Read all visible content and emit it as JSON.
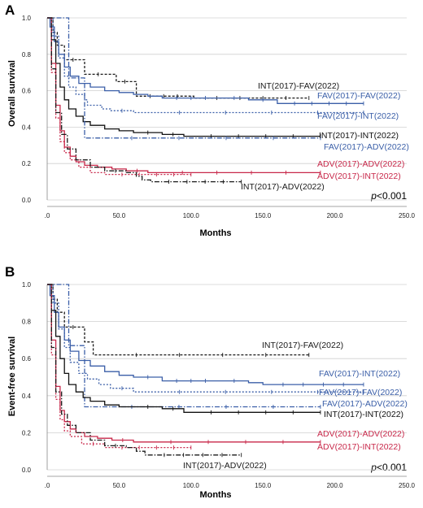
{
  "chart_data": [
    {
      "panel": "A",
      "type": "line",
      "ylabel": "Overall survival",
      "xlabel": "Months",
      "xlim": [
        0,
        250
      ],
      "ylim": [
        0,
        1
      ],
      "xticks": [
        ".0",
        "50.0",
        "100.0",
        "150.0",
        "200.0",
        "250.0"
      ],
      "yticks": [
        "0.0",
        "0.2",
        "0.4",
        "0.6",
        "0.8",
        "1.0"
      ],
      "pvalue": {
        "p": "p",
        "rest": "<0.001"
      },
      "series": [
        {
          "name": "INT(2017)-FAV(2022)",
          "color": "#1a1a1a",
          "dash": "3,2",
          "points": [
            [
              0,
              1.0
            ],
            [
              4,
              0.92
            ],
            [
              7,
              0.85
            ],
            [
              12,
              0.77
            ],
            [
              24,
              0.77
            ],
            [
              26,
              0.69
            ],
            [
              45,
              0.69
            ],
            [
              48,
              0.65
            ],
            [
              60,
              0.65
            ],
            [
              62,
              0.57
            ],
            [
              100,
              0.57
            ],
            [
              102,
              0.56
            ],
            [
              182,
              0.56
            ]
          ]
        },
        {
          "name": "FAV(2017)-FAV(2022)",
          "color": "#3b5fa8",
          "dash": "",
          "points": [
            [
              0,
              1.0
            ],
            [
              2,
              0.95
            ],
            [
              5,
              0.87
            ],
            [
              8,
              0.8
            ],
            [
              12,
              0.73
            ],
            [
              16,
              0.68
            ],
            [
              22,
              0.64
            ],
            [
              30,
              0.62
            ],
            [
              40,
              0.6
            ],
            [
              50,
              0.59
            ],
            [
              60,
              0.58
            ],
            [
              70,
              0.57
            ],
            [
              80,
              0.56
            ],
            [
              120,
              0.56
            ],
            [
              140,
              0.55
            ],
            [
              160,
              0.53
            ],
            [
              220,
              0.53
            ]
          ]
        },
        {
          "name": "FAV(2017)-INT(2022)",
          "color": "#3b5fa8",
          "dash": "2,2",
          "points": [
            [
              0,
              1.0
            ],
            [
              4,
              0.9
            ],
            [
              8,
              0.78
            ],
            [
              12,
              0.68
            ],
            [
              15,
              0.62
            ],
            [
              20,
              0.58
            ],
            [
              26,
              0.55
            ],
            [
              28,
              0.52
            ],
            [
              38,
              0.5
            ],
            [
              44,
              0.49
            ],
            [
              60,
              0.48
            ],
            [
              220,
              0.48
            ]
          ]
        },
        {
          "name": "INT(2017)-INT(2022)",
          "color": "#111111",
          "dash": "",
          "points": [
            [
              0,
              1.0
            ],
            [
              3,
              0.88
            ],
            [
              6,
              0.75
            ],
            [
              9,
              0.62
            ],
            [
              12,
              0.55
            ],
            [
              15,
              0.5
            ],
            [
              20,
              0.46
            ],
            [
              25,
              0.43
            ],
            [
              30,
              0.41
            ],
            [
              40,
              0.39
            ],
            [
              50,
              0.38
            ],
            [
              60,
              0.37
            ],
            [
              80,
              0.36
            ],
            [
              95,
              0.35
            ],
            [
              190,
              0.35
            ]
          ]
        },
        {
          "name": "FAV(2017)-ADV(2022)",
          "color": "#3b5fa8",
          "dash": "6,2,1.5,2",
          "points": [
            [
              0,
              1.0
            ],
            [
              15,
              1.0
            ],
            [
              15,
              0.67
            ],
            [
              26,
              0.67
            ],
            [
              26,
              0.34
            ],
            [
              190,
              0.34
            ]
          ]
        },
        {
          "name": "ADV(2017)-ADV(2022)",
          "color": "#c8284a",
          "dash": "",
          "points": [
            [
              0,
              1.0
            ],
            [
              3,
              0.75
            ],
            [
              6,
              0.52
            ],
            [
              9,
              0.38
            ],
            [
              12,
              0.29
            ],
            [
              16,
              0.24
            ],
            [
              20,
              0.21
            ],
            [
              26,
              0.19
            ],
            [
              35,
              0.18
            ],
            [
              45,
              0.17
            ],
            [
              55,
              0.16
            ],
            [
              70,
              0.15
            ],
            [
              190,
              0.15
            ]
          ]
        },
        {
          "name": "ADV(2017)-INT(2022)",
          "color": "#c8284a",
          "dash": "2,2",
          "points": [
            [
              0,
              1.0
            ],
            [
              3,
              0.7
            ],
            [
              6,
              0.45
            ],
            [
              9,
              0.32
            ],
            [
              12,
              0.26
            ],
            [
              16,
              0.22
            ],
            [
              22,
              0.18
            ],
            [
              30,
              0.15
            ],
            [
              40,
              0.14
            ],
            [
              100,
              0.14
            ]
          ]
        },
        {
          "name": "INT(2017)-ADV(2022)",
          "color": "#1a1a1a",
          "dash": "6,2,1.5,2",
          "points": [
            [
              0,
              1.0
            ],
            [
              3,
              0.72
            ],
            [
              6,
              0.48
            ],
            [
              10,
              0.36
            ],
            [
              14,
              0.28
            ],
            [
              20,
              0.22
            ],
            [
              30,
              0.18
            ],
            [
              40,
              0.16
            ],
            [
              55,
              0.15
            ],
            [
              62,
              0.13
            ],
            [
              66,
              0.11
            ],
            [
              72,
              0.1
            ],
            [
              135,
              0.1
            ]
          ]
        }
      ],
      "labels": [
        {
          "series": 0,
          "text": "INT(2017)-FAV(2022)"
        },
        {
          "series": 1,
          "text": "FAV(2017)-FAV(2022)"
        },
        {
          "series": 2,
          "text": "FAV(2017)-INT(2022)"
        },
        {
          "series": 3,
          "text": "INT(2017)-INT(2022)"
        },
        {
          "series": 4,
          "text": "FAV(2017)-ADV(2022)"
        },
        {
          "series": 5,
          "text": "ADV(2017)-ADV(2022)"
        },
        {
          "series": 6,
          "text": "ADV(2017)-INT(2022)"
        },
        {
          "series": 7,
          "text": "INT(2017)-ADV(2022)"
        }
      ]
    },
    {
      "panel": "B",
      "type": "line",
      "ylabel": "Event-free survival",
      "xlabel": "Months",
      "xlim": [
        0,
        250
      ],
      "ylim": [
        0,
        1
      ],
      "xticks": [
        ".0",
        "50.0",
        "100.0",
        "150.0",
        "200.0",
        "250.0"
      ],
      "yticks": [
        "0.0",
        "0.2",
        "0.4",
        "0.6",
        "0.8",
        "1.0"
      ],
      "pvalue": {
        "p": "p",
        "rest": "<0.001"
      },
      "series": [
        {
          "name": "INT(2017)-FAV(2022)",
          "color": "#1a1a1a",
          "dash": "3,2",
          "points": [
            [
              0,
              1.0
            ],
            [
              4,
              0.92
            ],
            [
              7,
              0.85
            ],
            [
              12,
              0.77
            ],
            [
              24,
              0.77
            ],
            [
              26,
              0.69
            ],
            [
              30,
              0.69
            ],
            [
              32,
              0.62
            ],
            [
              182,
              0.62
            ]
          ]
        },
        {
          "name": "FAV(2017)-INT(2022)",
          "color": "#3b5fa8",
          "dash": "",
          "points": [
            [
              0,
              1.0
            ],
            [
              2,
              0.94
            ],
            [
              5,
              0.85
            ],
            [
              8,
              0.77
            ],
            [
              12,
              0.7
            ],
            [
              16,
              0.64
            ],
            [
              22,
              0.59
            ],
            [
              30,
              0.56
            ],
            [
              40,
              0.53
            ],
            [
              50,
              0.51
            ],
            [
              60,
              0.5
            ],
            [
              80,
              0.48
            ],
            [
              120,
              0.48
            ],
            [
              140,
              0.47
            ],
            [
              150,
              0.46
            ],
            [
              220,
              0.46
            ]
          ]
        },
        {
          "name": "FAV(2017)-FAV(2022)",
          "color": "#3b5fa8",
          "dash": "2,2",
          "points": [
            [
              0,
              1.0
            ],
            [
              4,
              0.9
            ],
            [
              8,
              0.76
            ],
            [
              12,
              0.66
            ],
            [
              16,
              0.58
            ],
            [
              22,
              0.52
            ],
            [
              28,
              0.49
            ],
            [
              36,
              0.46
            ],
            [
              44,
              0.44
            ],
            [
              60,
              0.42
            ],
            [
              220,
              0.42
            ]
          ]
        },
        {
          "name": "FAV(2017)-ADV(2022)",
          "color": "#3b5fa8",
          "dash": "6,2,1.5,2",
          "points": [
            [
              0,
              1.0
            ],
            [
              15,
              1.0
            ],
            [
              15,
              0.67
            ],
            [
              26,
              0.67
            ],
            [
              26,
              0.34
            ],
            [
              190,
              0.34
            ]
          ]
        },
        {
          "name": "INT(2017)-INT(2022)",
          "color": "#111111",
          "dash": "",
          "points": [
            [
              0,
              1.0
            ],
            [
              3,
              0.86
            ],
            [
              6,
              0.72
            ],
            [
              9,
              0.6
            ],
            [
              12,
              0.52
            ],
            [
              15,
              0.46
            ],
            [
              20,
              0.42
            ],
            [
              25,
              0.39
            ],
            [
              30,
              0.37
            ],
            [
              40,
              0.35
            ],
            [
              50,
              0.34
            ],
            [
              60,
              0.34
            ],
            [
              80,
              0.33
            ],
            [
              95,
              0.31
            ],
            [
              190,
              0.31
            ]
          ]
        },
        {
          "name": "ADV(2017)-ADV(2022)",
          "color": "#c8284a",
          "dash": "",
          "points": [
            [
              0,
              1.0
            ],
            [
              3,
              0.7
            ],
            [
              6,
              0.45
            ],
            [
              9,
              0.32
            ],
            [
              12,
              0.26
            ],
            [
              16,
              0.22
            ],
            [
              20,
              0.2
            ],
            [
              26,
              0.18
            ],
            [
              35,
              0.17
            ],
            [
              45,
              0.16
            ],
            [
              60,
              0.15
            ],
            [
              190,
              0.15
            ]
          ]
        },
        {
          "name": "ADV(2017)-INT(2022)",
          "color": "#c8284a",
          "dash": "2,2",
          "points": [
            [
              0,
              1.0
            ],
            [
              3,
              0.62
            ],
            [
              6,
              0.38
            ],
            [
              9,
              0.27
            ],
            [
              12,
              0.21
            ],
            [
              16,
              0.18
            ],
            [
              24,
              0.14
            ],
            [
              40,
              0.12
            ],
            [
              100,
              0.12
            ]
          ]
        },
        {
          "name": "INT(2017)-ADV(2022)",
          "color": "#1a1a1a",
          "dash": "6,2,1.5,2",
          "points": [
            [
              0,
              1.0
            ],
            [
              3,
              0.66
            ],
            [
              6,
              0.42
            ],
            [
              10,
              0.3
            ],
            [
              14,
              0.24
            ],
            [
              20,
              0.2
            ],
            [
              30,
              0.16
            ],
            [
              40,
              0.13
            ],
            [
              55,
              0.12
            ],
            [
              62,
              0.1
            ],
            [
              68,
              0.08
            ],
            [
              135,
              0.08
            ]
          ]
        }
      ],
      "labels": [
        {
          "series": 0,
          "text": "INT(2017)-FAV(2022)"
        },
        {
          "series": 1,
          "text": "FAV(2017)-INT(2022)"
        },
        {
          "series": 2,
          "text": "FAV(2017)-FAV(2022)"
        },
        {
          "series": 3,
          "text": "FAV(2017)-ADV(2022)"
        },
        {
          "series": 4,
          "text": "INT(2017)-INT(2022)"
        },
        {
          "series": 5,
          "text": "ADV(2017)-ADV(2022)"
        },
        {
          "series": 6,
          "text": "ADV(2017)-INT(2022)"
        },
        {
          "series": 7,
          "text": "INT(2017)-ADV(2022)"
        }
      ]
    }
  ]
}
